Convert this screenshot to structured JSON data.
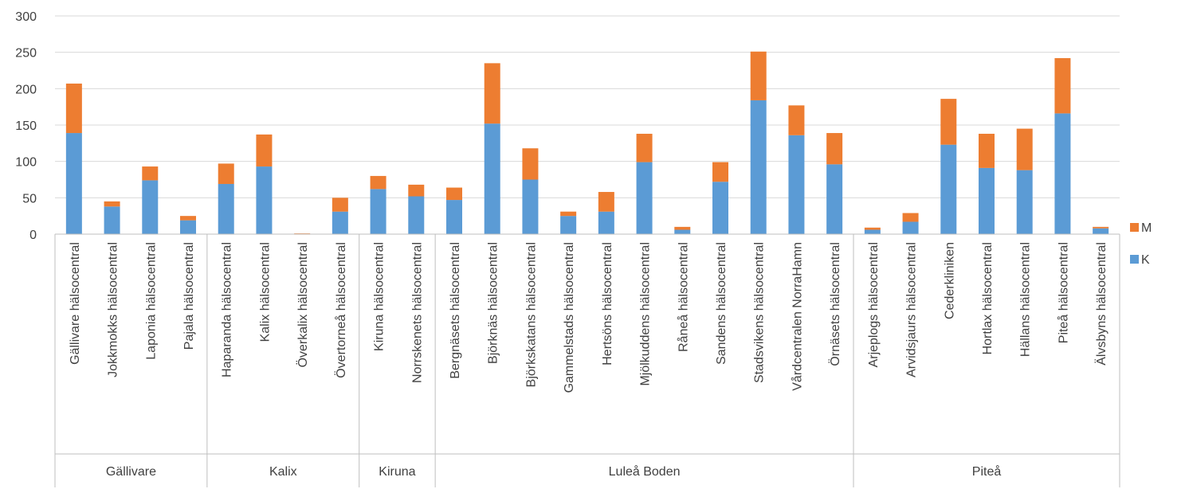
{
  "chart_data": {
    "type": "bar",
    "stacked": true,
    "title": "",
    "xlabel": "",
    "ylabel": "",
    "ylim": [
      0,
      300
    ],
    "yticks": [
      0,
      50,
      100,
      150,
      200,
      250,
      300
    ],
    "grid": true,
    "legend_position": "right",
    "categories": [
      "Gällivare hälsocentral",
      "Jokkmokks hälsocentral",
      "Laponia hälsocentral",
      "Pajala hälsocentral",
      "Haparanda hälsocentral",
      "Kalix hälsocentral",
      "Överkalix hälsocentral",
      "Övertorneå hälsocentral",
      "Kiruna hälsocentral",
      "Norrskenets hälsocentral",
      "Bergnäsets hälsocentral",
      "Björknäs hälsocentral",
      "Björkskatans hälsocentral",
      "Gammelstads hälsocentral",
      "Hertsöns hälsocentral",
      "Mjölkuddens hälsocentral",
      "Råneå hälsocentral",
      "Sandens hälsocentral",
      "Stadsvikens hälsocentral",
      "Vårdcentralen NorraHamn",
      "Örnäsets hälsocentral",
      "Arjeplogs hälsocentral",
      "Arvidsjaurs hälsocentral",
      "Cederkliniken",
      "Hortlax hälsocentral",
      "Hällans hälsocentral",
      "Piteå hälsocentral",
      "Älvsbyns hälsocentral"
    ],
    "groups": [
      {
        "label": "Gällivare",
        "count": 4
      },
      {
        "label": "Kalix",
        "count": 4
      },
      {
        "label": "Kiruna",
        "count": 2
      },
      {
        "label": "Luleå Boden",
        "count": 11
      },
      {
        "label": "Piteå",
        "count": 7
      }
    ],
    "series": [
      {
        "name": "K",
        "color": "#5b9bd5",
        "values": [
          139,
          38,
          74,
          19,
          69,
          93,
          0,
          31,
          62,
          52,
          47,
          152,
          75,
          25,
          31,
          99,
          6,
          72,
          184,
          136,
          96,
          6,
          17,
          123,
          91,
          88,
          166,
          8
        ]
      },
      {
        "name": "M",
        "color": "#ed7d31",
        "values": [
          68,
          7,
          19,
          6,
          28,
          44,
          1,
          19,
          18,
          16,
          17,
          83,
          43,
          6,
          27,
          39,
          4,
          27,
          67,
          41,
          43,
          3,
          12,
          63,
          47,
          57,
          76,
          2
        ]
      }
    ],
    "legend_order": [
      "M",
      "K"
    ]
  },
  "colors": {
    "grid": "#d9d9d9",
    "axis": "#bfbfbf",
    "text": "#404040"
  }
}
